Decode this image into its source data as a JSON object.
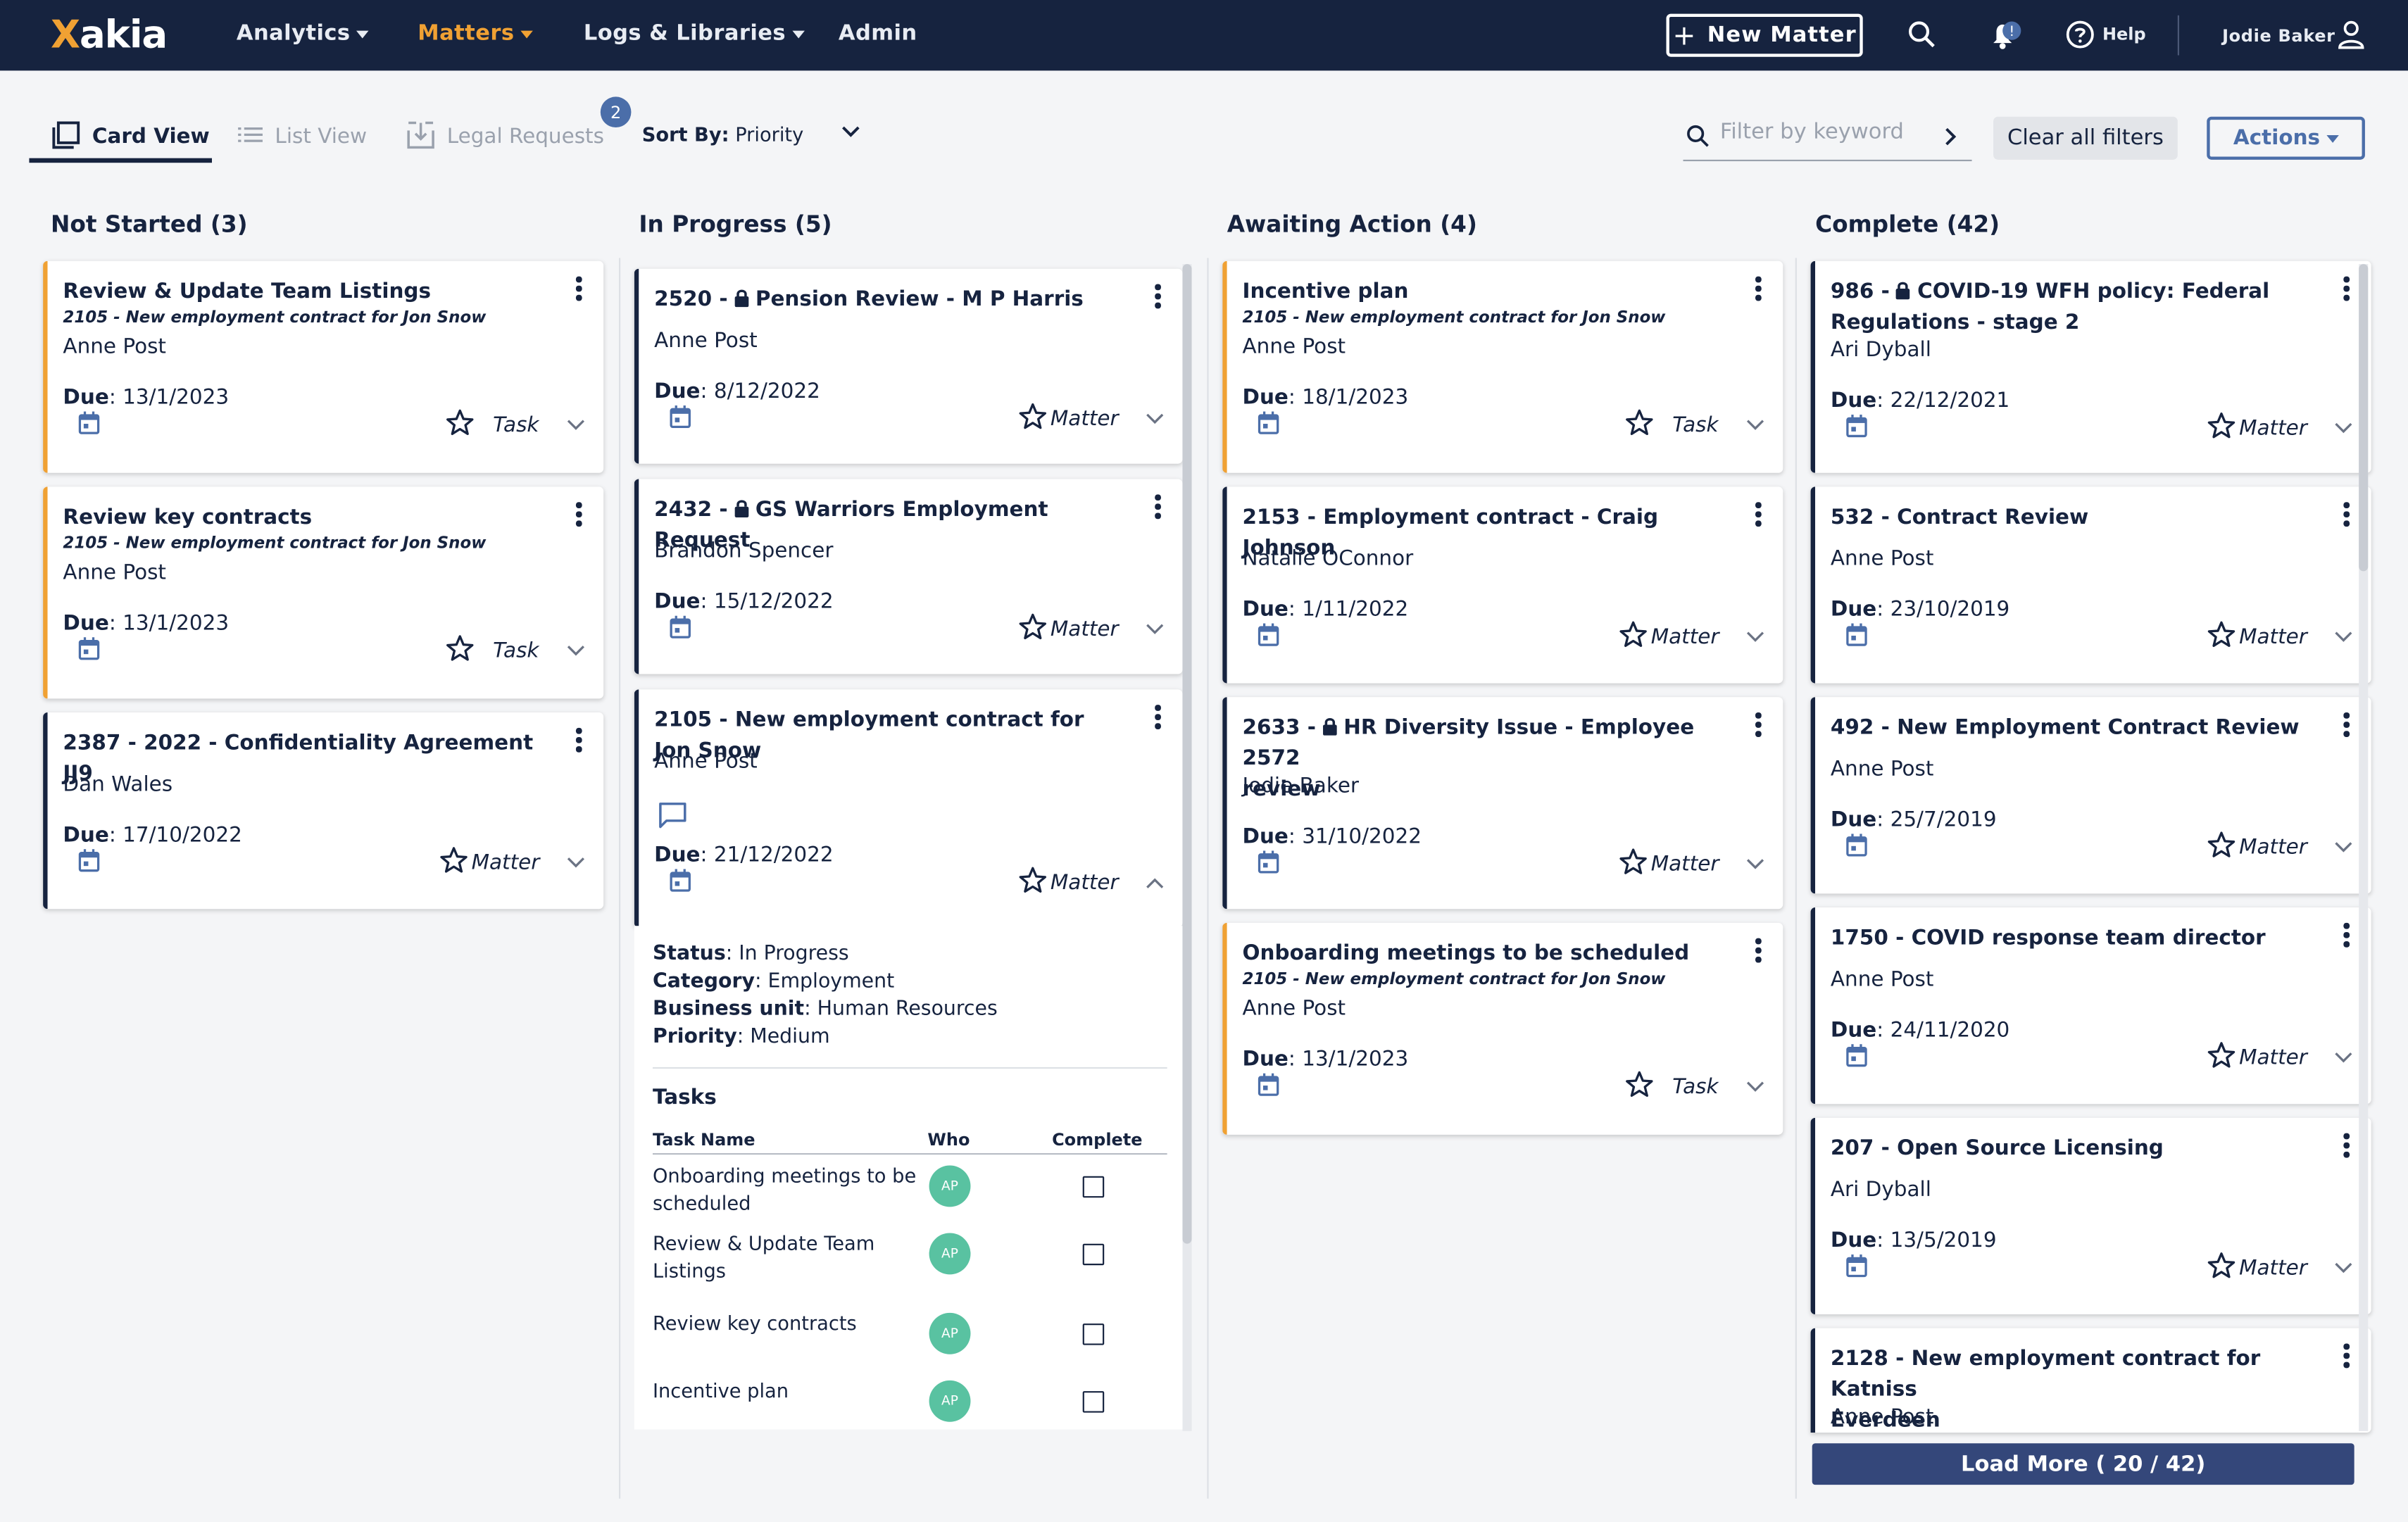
{
  "header": {
    "logo": "Xakia",
    "nav": [
      {
        "label": "Analytics",
        "active": false
      },
      {
        "label": "Matters",
        "active": true
      },
      {
        "label": "Logs & Libraries",
        "active": false
      },
      {
        "label": "Admin",
        "active": false
      }
    ],
    "new_matter": "New Matter",
    "notification_badge": "!",
    "help": "Help",
    "user": "Jodie Baker"
  },
  "toolbar": {
    "card_view": "Card View",
    "list_view": "List View",
    "legal_requests": "Legal Requests",
    "legal_requests_count": "2",
    "sort_label": "Sort By:",
    "sort_value": "Priority",
    "filter_placeholder": "Filter by keyword",
    "clear_filters": "Clear all filters",
    "actions": "Actions"
  },
  "columns": [
    {
      "title": "Not Started (3)",
      "cards": [
        {
          "title": "Review & Update Team Listings",
          "sub": "2105 - New employment contract for Jon Snow",
          "person": "Anne Post",
          "due": "13/1/2023",
          "type": "Task"
        },
        {
          "title": "Review key contracts",
          "sub": "2105 - New employment contract for Jon Snow",
          "person": "Anne Post",
          "due": "13/1/2023",
          "type": "Task"
        },
        {
          "title": "2387 - 2022 - Confidentiality Agreement JJ9",
          "person": "Dan Wales",
          "due": "17/10/2022",
          "type": "Matter"
        }
      ]
    },
    {
      "title": "In Progress (5)",
      "cards": [
        {
          "prefix": "2520 -",
          "title": "Pension Review - M P Harris",
          "person": "Anne Post",
          "due": "8/12/2022",
          "type": "Matter"
        },
        {
          "prefix": "2432 -",
          "title": "GS Warriors Employment Request",
          "person": "Brandon Spencer",
          "due": "15/12/2022",
          "type": "Matter"
        },
        {
          "title": "2105 - New employment contract for Jon Snow",
          "person": "Anne Post",
          "due": "21/12/2022",
          "type": "Matter"
        }
      ],
      "details": {
        "status_label": "Status",
        "status": "In Progress",
        "category_label": "Category",
        "category": "Employment",
        "unit_label": "Business unit",
        "unit": "Human Resources",
        "priority_label": "Priority",
        "priority": "Medium",
        "tasks_heading": "Tasks",
        "col_task": "Task Name",
        "col_who": "Who",
        "col_complete": "Complete",
        "tasks": [
          {
            "name": "Onboarding meetings to be scheduled",
            "who": "AP"
          },
          {
            "name": "Review & Update Team Listings",
            "who": "AP"
          },
          {
            "name": "Review key contracts",
            "who": "AP"
          },
          {
            "name": "Incentive plan",
            "who": "AP"
          }
        ]
      }
    },
    {
      "title": "Awaiting Action (4)",
      "cards": [
        {
          "title": "Incentive plan",
          "sub": "2105 - New employment contract for Jon Snow",
          "person": "Anne Post",
          "due": "18/1/2023",
          "type": "Task"
        },
        {
          "title": "2153 - Employment contract - Craig Johnson",
          "person": "Natalie OConnor",
          "due": "1/11/2022",
          "type": "Matter"
        },
        {
          "prefix": "2633 -",
          "title": "HR Diversity Issue - Employee 2572",
          "title2": "review",
          "person": "Jodie Baker",
          "due": "31/10/2022",
          "type": "Matter"
        },
        {
          "title": "Onboarding meetings to be scheduled",
          "sub": "2105 - New employment contract for Jon Snow",
          "person": "Anne Post",
          "due": "13/1/2023",
          "type": "Task"
        }
      ]
    },
    {
      "title": "Complete (42)",
      "cards": [
        {
          "prefix": "986 -",
          "title": "COVID-19 WFH policy: Federal",
          "title2": "Regulations - stage 2",
          "person": "Ari Dyball",
          "due": "22/12/2021",
          "type": "Matter"
        },
        {
          "title": "532 - Contract Review",
          "person": "Anne Post",
          "due": "23/10/2019",
          "type": "Matter"
        },
        {
          "title": "492 - New Employment Contract Review",
          "person": "Anne Post",
          "due": "25/7/2019",
          "type": "Matter"
        },
        {
          "title": "1750 - COVID response team director",
          "person": "Anne Post",
          "due": "24/11/2020",
          "type": "Matter"
        },
        {
          "title": "207 - Open Source Licensing",
          "person": "Ari Dyball",
          "due": "13/5/2019",
          "type": "Matter"
        },
        {
          "title": "2128 - New employment contract for Katniss",
          "title2": "Everdeen",
          "person": "Anne Post"
        }
      ],
      "load_more": "Load More ( 20 / 42)"
    }
  ],
  "due_label": "Due",
  "colors": {
    "navy": "#16233f",
    "orange": "#f0a133",
    "blue": "#4b6ea9",
    "green": "#59c2a1"
  }
}
